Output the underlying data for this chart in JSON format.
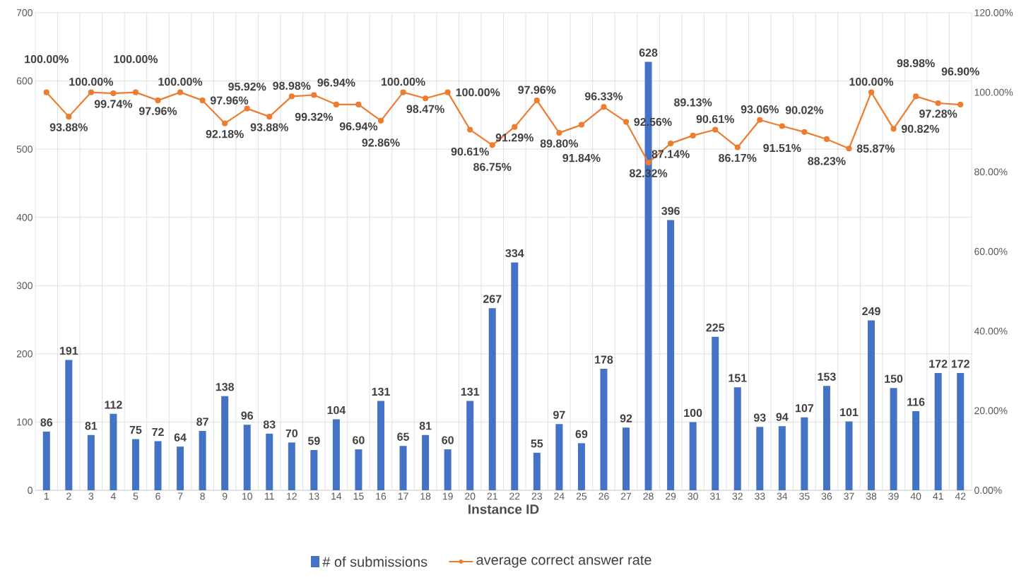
{
  "chart_data": {
    "type": "bar",
    "xlabel": "Instance ID",
    "categories": [
      "1",
      "2",
      "3",
      "4",
      "5",
      "6",
      "7",
      "8",
      "9",
      "10",
      "11",
      "12",
      "13",
      "14",
      "15",
      "16",
      "17",
      "18",
      "19",
      "20",
      "21",
      "22",
      "23",
      "24",
      "25",
      "26",
      "27",
      "28",
      "29",
      "30",
      "31",
      "32",
      "33",
      "34",
      "35",
      "36",
      "37",
      "38",
      "39",
      "40",
      "41",
      "42"
    ],
    "series": [
      {
        "name": "# of submissions",
        "color": "#4472c4",
        "values": [
          86,
          191,
          81,
          112,
          75,
          72,
          64,
          87,
          138,
          96,
          83,
          70,
          59,
          104,
          60,
          131,
          65,
          81,
          60,
          131,
          267,
          334,
          55,
          97,
          69,
          178,
          92,
          628,
          396,
          100,
          225,
          151,
          93,
          94,
          107,
          153,
          101,
          249,
          150,
          116,
          172,
          172
        ],
        "value_labels": [
          "86",
          "191",
          "81",
          "112",
          "75",
          "72",
          "64",
          "87",
          "138",
          "96",
          "83",
          "70",
          "59",
          "104",
          "60",
          "131",
          "65",
          "81",
          "60",
          "131",
          "267",
          "334",
          "55",
          "97",
          "69",
          "178",
          "92",
          "628",
          "396",
          "100",
          "225",
          "151",
          "93",
          "94",
          "107",
          "153",
          "101",
          "249",
          "150",
          "116",
          "172",
          "172"
        ]
      },
      {
        "name": "average correct answer rate",
        "type": "line",
        "axis": "y2",
        "color": "#ed7d31",
        "values": [
          100.0,
          93.88,
          100.0,
          99.74,
          100.0,
          97.96,
          100.0,
          97.96,
          92.18,
          95.92,
          93.88,
          98.98,
          99.32,
          96.94,
          96.94,
          92.86,
          100.0,
          98.47,
          100.0,
          90.61,
          86.75,
          91.29,
          97.96,
          89.8,
          91.84,
          96.33,
          92.56,
          82.32,
          87.14,
          89.13,
          90.61,
          86.17,
          93.06,
          91.51,
          90.02,
          88.23,
          85.87,
          100.0,
          90.82,
          98.98,
          97.28,
          96.9
        ],
        "value_labels": [
          "100.00%",
          "93.88%",
          "100.00%",
          "99.74%",
          "100.00%",
          "97.96%",
          "100.00%",
          "97.96%",
          "92.18%",
          "95.92%",
          "93.88%",
          "98.98%",
          "99.32%",
          "96.94%",
          "96.94%",
          "92.86%",
          "100.00%",
          "98.47%",
          "100.00%",
          "90.61%",
          "86.75%",
          "91.29%",
          "97.96%",
          "89.80%",
          "91.84%",
          "96.33%",
          "92.56%",
          "82.32%",
          "87.14%",
          "89.13%",
          "90.61%",
          "86.17%",
          "93.06%",
          "91.51%",
          "90.02%",
          "88.23%",
          "85.87%",
          "100.00%",
          "90.82%",
          "98.98%",
          "97.28%",
          "96.90%"
        ]
      }
    ],
    "ylim": [
      0,
      700
    ],
    "yticks": [
      0,
      100,
      200,
      300,
      400,
      500,
      600,
      700
    ],
    "y2lim": [
      0,
      120
    ],
    "y2ticks": [
      {
        "value": 0,
        "label": "0.00%"
      },
      {
        "value": 20,
        "label": "20.00%"
      },
      {
        "value": 40,
        "label": "40.00%"
      },
      {
        "value": 60,
        "label": "60.00%"
      },
      {
        "value": 80,
        "label": "80.00%"
      },
      {
        "value": 100,
        "label": "100.00%"
      },
      {
        "value": 120,
        "label": "120.00%"
      }
    ],
    "grid": true,
    "legend": "bottom",
    "marker": "circle"
  }
}
